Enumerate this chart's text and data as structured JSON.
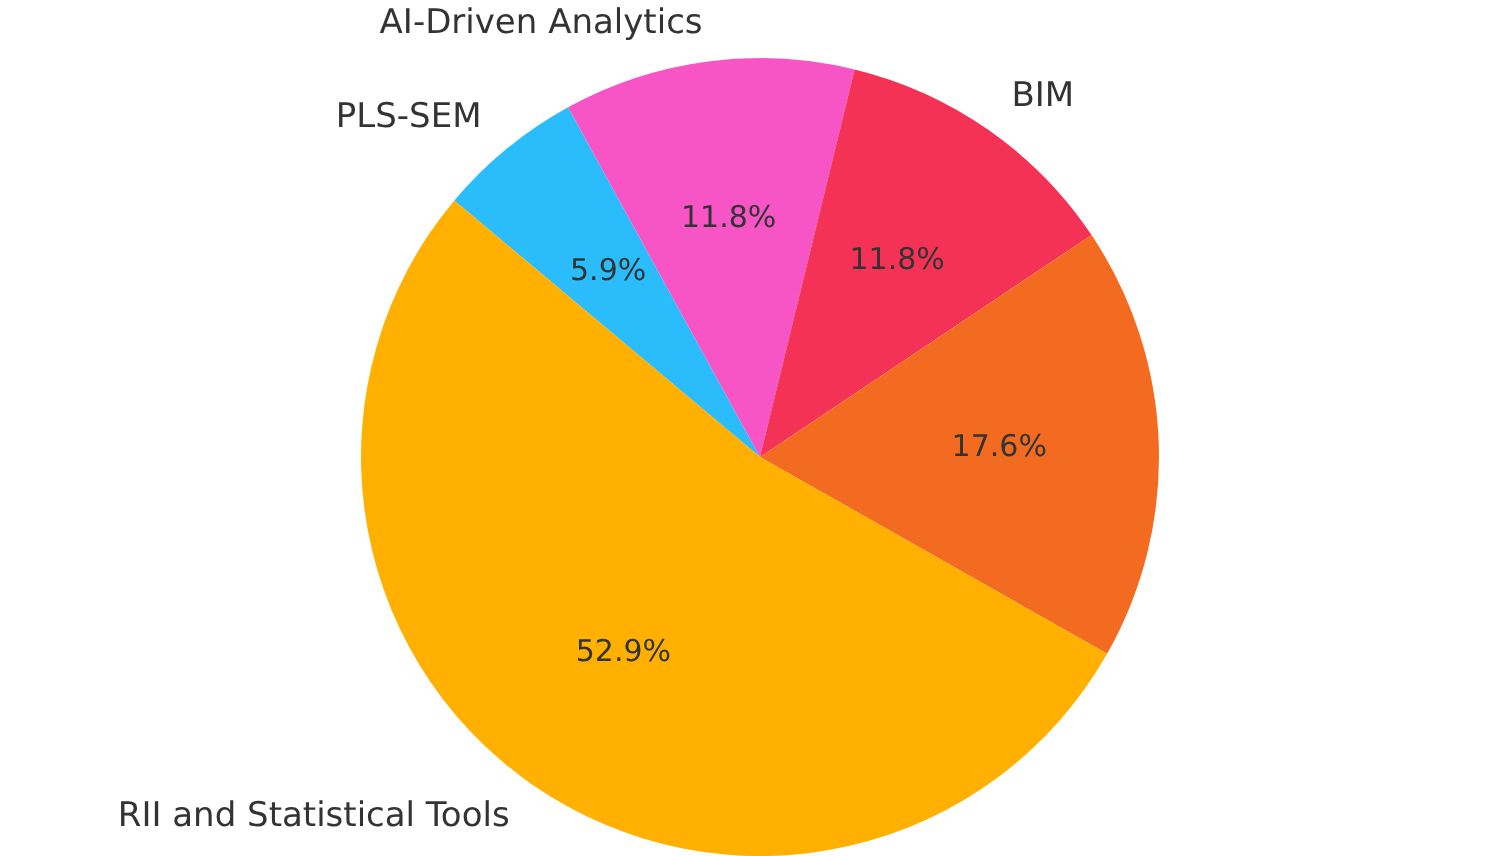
{
  "chart_data": {
    "type": "pie",
    "categories": [
      "PLS-SEM",
      "AI-Driven Analytics",
      "BIM",
      null,
      "RII and Statistical Tools"
    ],
    "values": [
      5.9,
      11.8,
      11.8,
      17.6,
      52.9
    ],
    "value_labels": [
      "5.9%",
      "11.8%",
      "11.8%",
      "17.6%",
      "52.9%"
    ],
    "colors": [
      "#2bbcfc",
      "#f755c6",
      "#f43256",
      "#f26b21",
      "#ffb000"
    ],
    "legend": false
  }
}
